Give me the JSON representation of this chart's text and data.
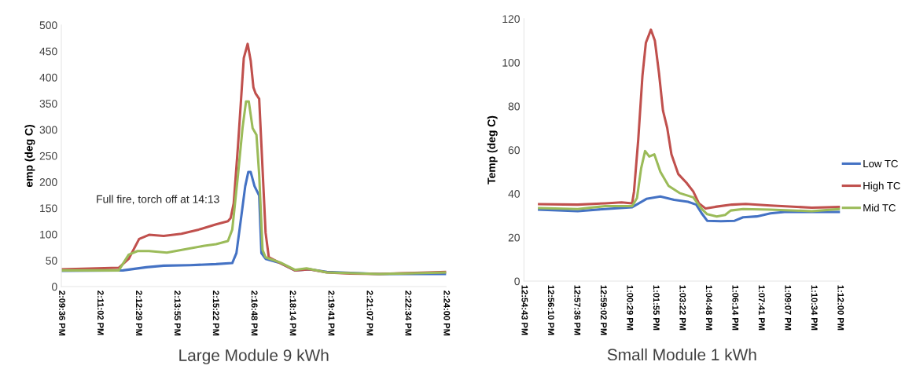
{
  "chart_data": [
    {
      "type": "line",
      "xlabel": "Large Module 9 kWh",
      "ylabel": "emp (deg C)",
      "annotations": [
        "Full fire, torch off at 14:13"
      ],
      "xlim": [
        14.16,
        14.4
      ],
      "xticks": [
        {
          "value": 14.16,
          "label": "2:09:36 PM"
        },
        {
          "value": 14.184,
          "label": "2:11:02 PM"
        },
        {
          "value": 14.208,
          "label": "2:12:29 PM"
        },
        {
          "value": 14.232,
          "label": "2:13:55 PM"
        },
        {
          "value": 14.256,
          "label": "2:15:22 PM"
        },
        {
          "value": 14.28,
          "label": "2:16:48 PM"
        },
        {
          "value": 14.304,
          "label": "2:18:14 PM"
        },
        {
          "value": 14.328,
          "label": "2:19:41 PM"
        },
        {
          "value": 14.352,
          "label": "2:21:07 PM"
        },
        {
          "value": 14.376,
          "label": "2:22:34 PM"
        },
        {
          "value": 14.4,
          "label": "2:24:00 PM"
        }
      ],
      "ylim": [
        0,
        500
      ],
      "yticks": [
        0,
        50,
        100,
        150,
        200,
        250,
        300,
        350,
        400,
        450,
        500
      ],
      "grid": false,
      "legend": false,
      "marker": "none",
      "line_style": "solid",
      "series": [
        {
          "color": "#4472c4",
          "x": [
            14.16,
            14.1984,
            14.213,
            14.2238,
            14.2402,
            14.2565,
            14.2666,
            14.2692,
            14.2721,
            14.2747,
            14.2766,
            14.2781,
            14.2805,
            14.2834,
            14.2848,
            14.2874,
            14.2966,
            14.3057,
            14.3148,
            14.3256,
            14.3582,
            14.4
          ],
          "values": [
            30,
            31,
            37,
            40,
            41,
            43,
            45,
            64,
            131,
            192,
            219,
            219,
            192,
            174,
            64,
            53,
            45,
            31,
            33,
            28,
            24,
            24
          ]
        },
        {
          "color": "#c0504d",
          "x": [
            14.16,
            14.1958,
            14.202,
            14.2085,
            14.2147,
            14.2238,
            14.2349,
            14.2457,
            14.2565,
            14.2639,
            14.2656,
            14.2675,
            14.2702,
            14.2738,
            14.2762,
            14.2781,
            14.2798,
            14.2812,
            14.2834,
            14.2848,
            14.2874,
            14.2894,
            14.2966,
            14.3057,
            14.3148,
            14.3256,
            14.34,
            14.3582,
            14.3765,
            14.4
          ],
          "values": [
            33,
            36,
            53,
            91,
            99,
            97,
            101,
            109,
            119,
            125,
            131,
            159,
            270,
            437,
            464,
            432,
            381,
            369,
            359,
            270,
            103,
            56,
            45,
            31,
            33,
            27,
            25,
            24,
            26,
            28
          ]
        },
        {
          "color": "#9bbb59",
          "x": [
            14.16,
            14.1958,
            14.202,
            14.2075,
            14.2147,
            14.2258,
            14.2385,
            14.2493,
            14.2565,
            14.2639,
            14.2666,
            14.2702,
            14.273,
            14.2752,
            14.2769,
            14.2793,
            14.2817,
            14.2834,
            14.2855,
            14.2874,
            14.2966,
            14.3057,
            14.3129,
            14.3256,
            14.3582,
            14.4
          ],
          "values": [
            31,
            31,
            61,
            68,
            68,
            65,
            72,
            78,
            81,
            87,
            109,
            214,
            303,
            354,
            354,
            303,
            290,
            214,
            70,
            56,
            46,
            32,
            35,
            27,
            24,
            27
          ]
        }
      ]
    },
    {
      "type": "line",
      "xlabel": "Small Module 1 kWh",
      "ylabel": "Temp (deg C)",
      "xlim": [
        12.912,
        13.2
      ],
      "xticks": [
        {
          "value": 12.912,
          "label": "12:54:43 PM"
        },
        {
          "value": 12.936,
          "label": "12:56:10 PM"
        },
        {
          "value": 12.96,
          "label": "12:57:36 PM"
        },
        {
          "value": 12.984,
          "label": "12:59:02 PM"
        },
        {
          "value": 13.008,
          "label": "1:00:29 PM"
        },
        {
          "value": 13.032,
          "label": "1:01:55 PM"
        },
        {
          "value": 13.056,
          "label": "1:03:22 PM"
        },
        {
          "value": 13.08,
          "label": "1:04:48 PM"
        },
        {
          "value": 13.104,
          "label": "1:06:14 PM"
        },
        {
          "value": 13.128,
          "label": "1:07:41 PM"
        },
        {
          "value": 13.152,
          "label": "1:09:07 PM"
        },
        {
          "value": 13.176,
          "label": "1:10:34 PM"
        },
        {
          "value": 13.2,
          "label": "1:12:00 PM"
        }
      ],
      "ylim": [
        0,
        120
      ],
      "yticks": [
        0,
        20,
        40,
        60,
        80,
        100,
        120
      ],
      "grid": false,
      "legend": "right",
      "marker": "none",
      "line_style": "solid",
      "series": [
        {
          "name": "Low TC",
          "color": "#4472c4",
          "x": [
            12.9258,
            12.961,
            12.9862,
            13.0106,
            13.0236,
            13.0363,
            13.0488,
            13.0615,
            13.069,
            13.074,
            13.079,
            13.0915,
            13.104,
            13.1117,
            13.1242,
            13.1366,
            13.1494,
            13.1743,
            13.2
          ],
          "values": [
            32.7,
            32,
            33,
            33.8,
            37.6,
            38.7,
            37.2,
            36.3,
            35,
            31,
            27.6,
            27.4,
            27.6,
            29.2,
            29.6,
            31,
            31.6,
            31.6,
            31.6
          ]
        },
        {
          "name": "High TC",
          "color": "#c0504d",
          "x": [
            12.9258,
            12.961,
            12.9862,
            13.001,
            13.0106,
            13.0123,
            13.0162,
            13.02,
            13.0231,
            13.0262,
            13.0277,
            13.0313,
            13.0351,
            13.0387,
            13.0426,
            13.0464,
            13.0526,
            13.0601,
            13.0663,
            13.0714,
            13.0776,
            13.0865,
            13.1016,
            13.1141,
            13.1366,
            13.1743,
            13.2
          ],
          "values": [
            35.2,
            35,
            35.6,
            36,
            35.6,
            41,
            65,
            94,
            109,
            113,
            115,
            110,
            95,
            78,
            70,
            58,
            49,
            45,
            41,
            35.6,
            33.2,
            34,
            35,
            35.3,
            34.6,
            33.6,
            33.9
          ]
        },
        {
          "name": "Mid TC",
          "color": "#9bbb59",
          "x": [
            12.9258,
            12.961,
            12.9862,
            13.0106,
            13.015,
            13.0188,
            13.0224,
            13.0262,
            13.0308,
            13.0363,
            13.0438,
            13.0538,
            13.0663,
            13.074,
            13.079,
            13.0877,
            13.0954,
            13.1004,
            13.1117,
            13.1366,
            13.1743,
            13.2
          ],
          "values": [
            33.4,
            33,
            34.3,
            34.3,
            38,
            51.6,
            59.5,
            57,
            58,
            50,
            43.6,
            40.3,
            38.3,
            33,
            30.6,
            29.6,
            30.3,
            32.3,
            33,
            32.7,
            32,
            33
          ]
        }
      ]
    }
  ]
}
